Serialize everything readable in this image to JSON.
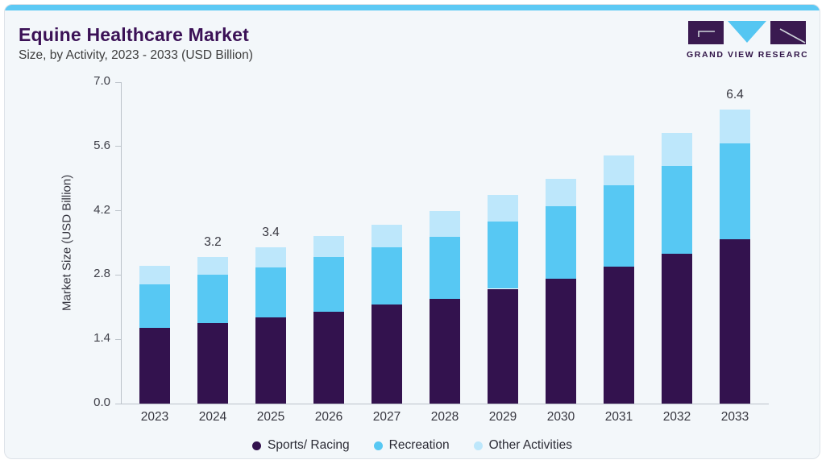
{
  "header": {
    "title": "Equine Healthcare Market",
    "subtitle": "Size, by Activity, 2023 - 2033 (USD Billion)"
  },
  "logo": {
    "wordmark": "GRAND VIEW RESEARCH",
    "mark_letters": [
      "G",
      "V",
      "R"
    ]
  },
  "colors": {
    "brand_purple": "#3b1156",
    "accent_blue": "#5dc9f4",
    "bar_sports": "#33124e",
    "bar_recreation": "#57c8f3",
    "bar_other": "#bde7fb",
    "card_background": "#f3f7fa",
    "axis_line": "#bcc3ca"
  },
  "chart_data": {
    "type": "bar",
    "stacked": true,
    "title": "Equine Healthcare Market Size, by Activity, 2023 - 2033 (USD Billion)",
    "xlabel": "",
    "ylabel": "Market Size (USD Billion)",
    "ylim": [
      0,
      7
    ],
    "ytick_labels": [
      "0.0",
      "1.4",
      "2.8",
      "4.2",
      "5.6",
      "7.0"
    ],
    "grid": false,
    "legend_position": "bottom",
    "categories": [
      "2023",
      "2024",
      "2025",
      "2026",
      "2027",
      "2028",
      "2029",
      "2030",
      "2031",
      "2032",
      "2033"
    ],
    "series": [
      {
        "name": "Sports/ Racing",
        "color": "#33124e",
        "values": [
          1.65,
          1.75,
          1.88,
          2.0,
          2.15,
          2.28,
          2.5,
          2.72,
          2.98,
          3.27,
          3.58
        ]
      },
      {
        "name": "Recreation",
        "color": "#57c8f3",
        "values": [
          0.95,
          1.05,
          1.09,
          1.2,
          1.25,
          1.35,
          1.47,
          1.58,
          1.78,
          1.9,
          2.08
        ]
      },
      {
        "name": "Other Activities",
        "color": "#bde7fb",
        "values": [
          0.4,
          0.4,
          0.43,
          0.45,
          0.5,
          0.57,
          0.58,
          0.6,
          0.64,
          0.73,
          0.74
        ]
      }
    ],
    "totals": [
      3.0,
      3.2,
      3.4,
      3.65,
      3.9,
      4.2,
      4.55,
      4.9,
      5.4,
      5.9,
      6.4
    ],
    "total_labels": [
      "",
      "3.2",
      "3.4",
      "",
      "",
      "",
      "",
      "",
      "",
      "",
      "6.4"
    ]
  }
}
